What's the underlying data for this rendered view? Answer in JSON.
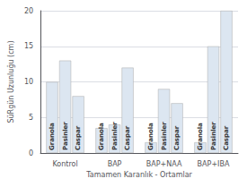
{
  "chart_data": {
    "type": "bar",
    "categories": [
      "Kontrol",
      "BAP",
      "BAP+NAA",
      "BAP+IBA"
    ],
    "series": [
      {
        "name": "Granola",
        "values": [
          10,
          3.5,
          1.5,
          1.5
        ]
      },
      {
        "name": "Pasinler",
        "values": [
          13,
          4,
          9,
          15
        ]
      },
      {
        "name": "Caspar",
        "values": [
          8,
          12,
          7,
          20
        ]
      }
    ],
    "color": "#dce6f1",
    "xlabel": "Tamamen Karanlık - Ortamlar",
    "ylabel": "SüRgün Uzunluğu (cm)",
    "ylim": [
      0,
      20
    ],
    "yticks": [
      0,
      5,
      10,
      15,
      20
    ]
  }
}
